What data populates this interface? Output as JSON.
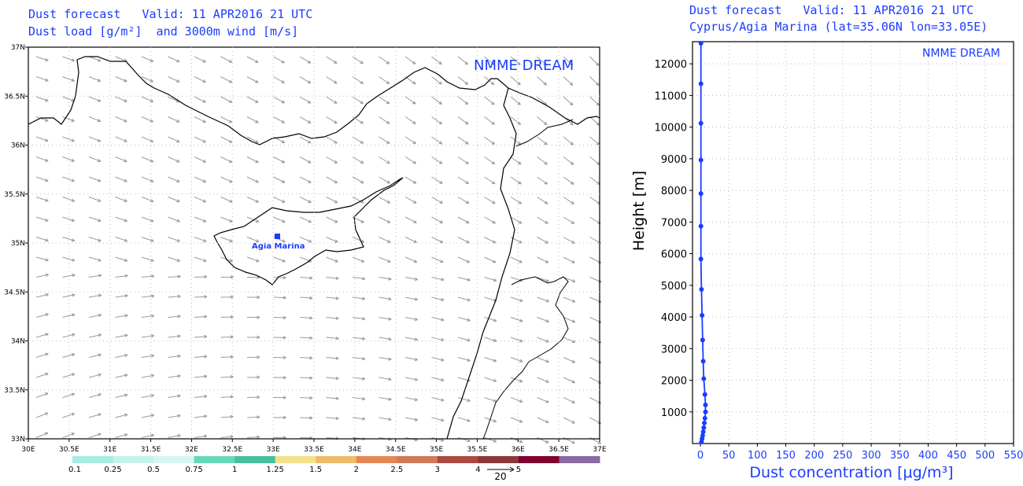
{
  "map": {
    "title_line1": "Dust forecast   Valid: 11 APR2016 21 UTC",
    "title_line2": "Dust load [g/m²]  and 3000m wind [m/s]",
    "watermark": "NMME DREAM",
    "station_label": "Agia Marina",
    "lon_ticks": [
      "30E",
      "30.5E",
      "31E",
      "31.5E",
      "32E",
      "32.5E",
      "33E",
      "33.5E",
      "34E",
      "34.5E",
      "35E",
      "35.5E",
      "36E",
      "36.5E",
      "37E"
    ],
    "lat_ticks": [
      "33N",
      "33.5N",
      "34N",
      "34.5N",
      "35N",
      "35.5N",
      "36N",
      "36.5N",
      "37N"
    ],
    "colorbar": {
      "labels": [
        "0.1",
        "0.25",
        "0.5",
        "0.75",
        "1",
        "1.25",
        "1.5",
        "2",
        "2.5",
        "3",
        "4",
        "5"
      ],
      "colors": [
        "#a6ece0",
        "#c6f2ec",
        "#d6f6f2",
        "#66d8b8",
        "#48c0a0",
        "#f2e28a",
        "#eebb66",
        "#e28855",
        "#d07a5a",
        "#aa4a40",
        "#8a3838",
        "#800030",
        "#8a6aa0"
      ],
      "wind_ref": "20"
    },
    "colors": {
      "text": "#1a3cff",
      "arrows": "#9a9a9a",
      "coast": "#000000"
    }
  },
  "profile": {
    "title_line1": "Dust forecast   Valid: 11 APR2016 21 UTC",
    "title_line2": "Cyprus/Agia Marina (lat=35.06N lon=33.05E)",
    "watermark": "NMME DREAM"
  },
  "chart_data": [
    {
      "type": "map",
      "title": "Dust forecast Valid: 11 APR2016 21 UTC",
      "subtitle": "Dust load [g/m²] and 3000m wind [m/s]",
      "xlim": [
        30,
        37
      ],
      "ylim": [
        33,
        37
      ],
      "station": {
        "name": "Agia Marina",
        "lon": 33.05,
        "lat": 35.06
      },
      "colorbar_levels": [
        0.1,
        0.25,
        0.5,
        0.75,
        1,
        1.25,
        1.5,
        2,
        2.5,
        3,
        4,
        5
      ],
      "wind_reference": 20,
      "dust_load_shown": false
    },
    {
      "type": "line",
      "title": "Dust forecast Valid: 11 APR2016 21 UTC",
      "subtitle": "Cyprus/Agia Marina (lat=35.06N lon=33.05E)",
      "xlabel": "Dust concentration [μg/m³]",
      "ylabel": "Height [m]",
      "xlim": [
        0,
        550
      ],
      "ylim": [
        0,
        12700
      ],
      "x_ticks": [
        0,
        50,
        100,
        150,
        200,
        250,
        300,
        350,
        400,
        450,
        500,
        550
      ],
      "y_ticks": [
        1000,
        2000,
        3000,
        4000,
        5000,
        6000,
        7000,
        8000,
        9000,
        10000,
        11000,
        12000
      ],
      "grid": true,
      "series": [
        {
          "x": [
            2,
            3,
            4,
            5,
            6,
            7,
            8,
            9,
            9,
            8,
            6,
            5,
            4,
            3,
            2,
            1,
            1,
            1,
            1,
            1,
            1,
            1,
            0
          ],
          "y": [
            50,
            150,
            250,
            370,
            500,
            650,
            800,
            1000,
            1220,
            1550,
            2050,
            2600,
            3270,
            4050,
            4870,
            5830,
            6870,
            7900,
            8960,
            10120,
            11370,
            12650,
            12700
          ]
        }
      ]
    }
  ]
}
